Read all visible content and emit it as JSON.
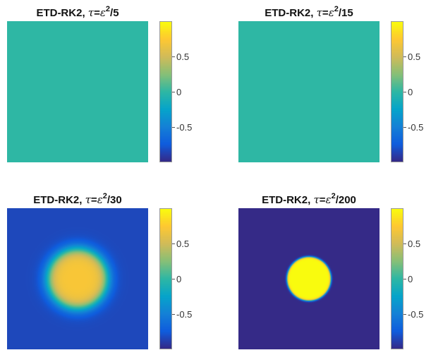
{
  "chart_data": [
    {
      "type": "heatmap",
      "title": "ETD-RK2, τ=ε²/5",
      "title_parts": {
        "scheme": "ETD-RK2, ",
        "tau": "τ",
        "eq": "=",
        "eps": "ε",
        "exp": "2",
        "denominator": "/5"
      },
      "field": "uniform",
      "uniform_value": 0.0,
      "colorbar": {
        "range": [
          -1,
          1
        ],
        "ticks": [
          "0.5",
          "0",
          "-0.5"
        ],
        "tick_values": [
          0.5,
          0,
          -0.5
        ],
        "colormap": "parula"
      }
    },
    {
      "type": "heatmap",
      "title": "ETD-RK2, τ=ε²/15",
      "title_parts": {
        "scheme": "ETD-RK2, ",
        "tau": "τ",
        "eq": "=",
        "eps": "ε",
        "exp": "2",
        "denominator": "/15"
      },
      "field": "uniform",
      "uniform_value": 0.0,
      "colorbar": {
        "range": [
          -1,
          1
        ],
        "ticks": [
          "0.5",
          "0",
          "-0.5"
        ],
        "tick_values": [
          0.5,
          0,
          -0.5
        ],
        "colormap": "parula"
      }
    },
    {
      "type": "heatmap",
      "title": "ETD-RK2, τ=ε²/30",
      "title_parts": {
        "scheme": "ETD-RK2, ",
        "tau": "τ",
        "eq": "=",
        "eps": "ε",
        "exp": "2",
        "denominator": "/30"
      },
      "field": "disk",
      "inside_value": 0.72,
      "outside_value": -0.85,
      "disk_radius_fraction": 0.21,
      "interface_width_fraction": 0.1,
      "colorbar": {
        "range": [
          -1,
          1
        ],
        "ticks": [
          "0.5",
          "0",
          "-0.5"
        ],
        "tick_values": [
          0.5,
          0,
          -0.5
        ],
        "colormap": "parula"
      }
    },
    {
      "type": "heatmap",
      "title": "ETD-RK2, τ=ε²/200",
      "title_parts": {
        "scheme": "ETD-RK2, ",
        "tau": "τ",
        "eq": "=",
        "eps": "ε",
        "exp": "2",
        "denominator": "/200"
      },
      "field": "disk",
      "inside_value": 1.0,
      "outside_value": -1.0,
      "disk_radius_fraction": 0.155,
      "interface_width_fraction": 0.015,
      "colorbar": {
        "range": [
          -1,
          1
        ],
        "ticks": [
          "0.5",
          "0",
          "-0.5"
        ],
        "tick_values": [
          0.5,
          0,
          -0.5
        ],
        "colormap": "parula"
      }
    }
  ],
  "colors": {
    "parula": [
      "#352a87",
      "#0f5cdd",
      "#1481d6",
      "#06a4ca",
      "#2eb7a4",
      "#87bf77",
      "#d1bb59",
      "#fec832",
      "#f9fb0e"
    ]
  }
}
